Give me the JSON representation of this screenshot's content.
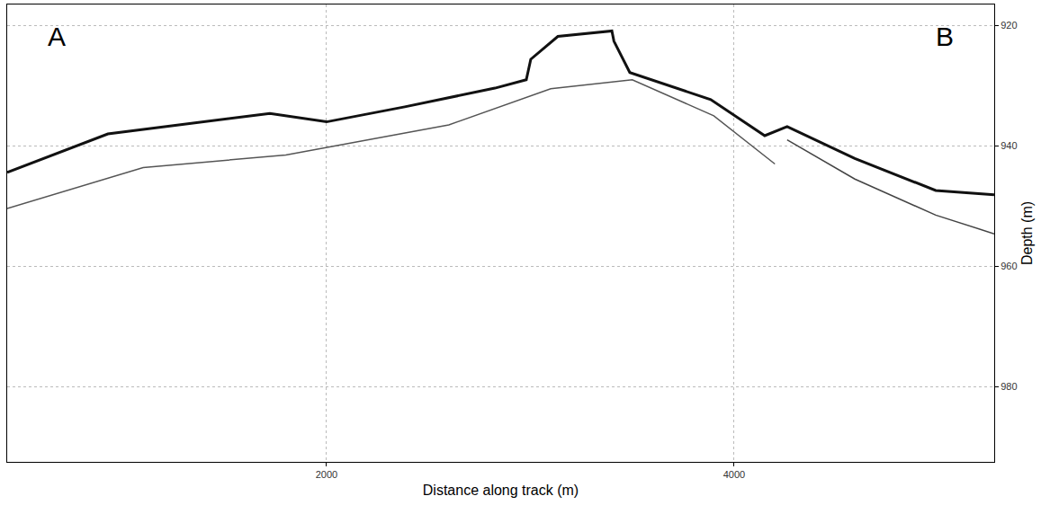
{
  "chart_data": {
    "type": "line",
    "x_label": "Distance along track (m)",
    "y_label": "Depth (m)",
    "annotations": [
      "A",
      "B"
    ],
    "xlim": [
      433,
      5276
    ],
    "xticks": [
      2000,
      4000
    ],
    "ylim": [
      992.5,
      916.5
    ],
    "yticks": [
      920,
      940,
      960,
      980
    ],
    "grid": true,
    "series": [
      {
        "color": "#111111",
        "x": [
          433,
          927,
          1722,
          2000,
          2384,
          2826,
          2980,
          3002,
          3135,
          3400,
          3410,
          3488,
          3885,
          4150,
          4260,
          4592,
          4989,
          5276
        ],
        "values": [
          944.4,
          938.0,
          934.6,
          936.0,
          933.5,
          930.4,
          929.0,
          925.6,
          921.8,
          920.9,
          922.6,
          927.8,
          932.3,
          938.3,
          936.8,
          942.1,
          947.4,
          948.1
        ]
      },
      {
        "color": "#555555",
        "x": [
          433,
          1100,
          1800,
          2600,
          3100,
          3500,
          3900,
          4200
        ],
        "values": [
          950.4,
          943.6,
          941.5,
          936.5,
          930.5,
          929.0,
          935.0,
          943.0
        ]
      },
      {
        "color": "#444444",
        "x": [
          4260,
          4592,
          4989,
          5276
        ],
        "values": [
          939.0,
          945.5,
          951.5,
          954.6
        ]
      }
    ]
  }
}
